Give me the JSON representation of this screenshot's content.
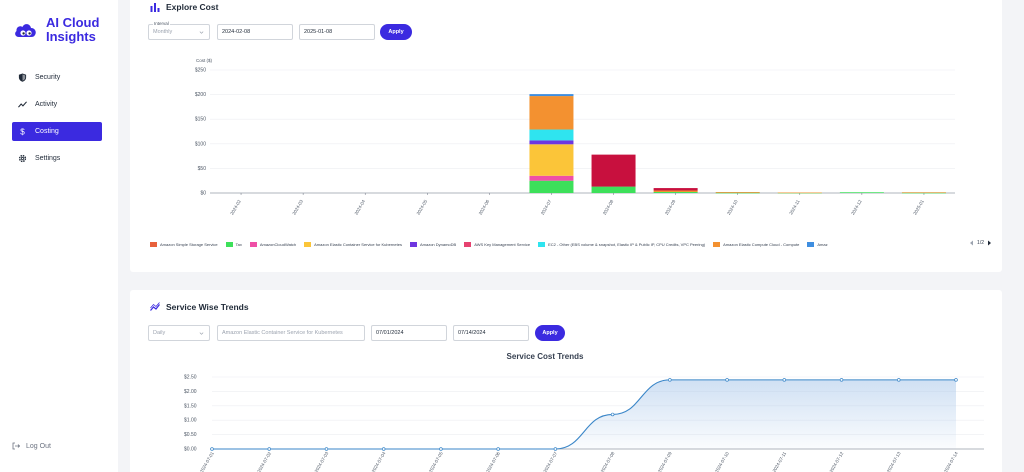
{
  "app": {
    "name_line1": "AI Cloud",
    "name_line2": "Insights",
    "logo_icon": "cloud-eyes-icon"
  },
  "sidebar": {
    "items": [
      {
        "label": "Security",
        "icon": "shield-icon",
        "active": false
      },
      {
        "label": "Activity",
        "icon": "activity-icon",
        "active": false
      },
      {
        "label": "Costing",
        "icon": "dollar-icon",
        "active": true
      },
      {
        "label": "Settings",
        "icon": "gear-icon",
        "active": false
      }
    ],
    "logout_label": "Log Out"
  },
  "explore": {
    "title": "Explore Cost",
    "interval_label": "Interval",
    "interval_value": "Monthly",
    "start_date": "2024-02-08",
    "end_date": "2025-01-08",
    "apply_label": "Apply",
    "legend_page": "1/2"
  },
  "trends": {
    "title": "Service Wise Trends",
    "granularity_value": "Daily",
    "service_value": "Amazon Elastic Container Service for Kubernetes",
    "start_date": "07/01/2024",
    "end_date": "07/14/2024",
    "apply_label": "Apply"
  },
  "colors": {
    "accent": "#3b2ae0"
  },
  "chart_data": [
    {
      "type": "bar",
      "stacked": true,
      "title": "",
      "ylabel": "Cost ($)",
      "ylim": [
        0,
        250
      ],
      "yticks": [
        "$0",
        "$50",
        "$100",
        "$150",
        "$200",
        "$250"
      ],
      "yticks_values": [
        0,
        50,
        100,
        150,
        200,
        250
      ],
      "categories": [
        "2024-02",
        "2024-03",
        "2024-04",
        "2024-05",
        "2024-06",
        "2024-07",
        "2024-08",
        "2024-09",
        "2024-10",
        "2024-11",
        "2024-12",
        "2025-01"
      ],
      "grid": true,
      "legend_placement": "bottom",
      "series": [
        {
          "name": "Amazon Simple Storage Service",
          "color": "#e8613c",
          "values": [
            0,
            0,
            0,
            0,
            0,
            0,
            0,
            0,
            0,
            0,
            0,
            0
          ]
        },
        {
          "name": "Tax",
          "color": "#3de05a",
          "values": [
            0,
            0,
            0,
            0,
            0,
            25,
            13,
            2,
            0.5,
            0.5,
            1.5,
            0.5
          ]
        },
        {
          "name": "AmazonCloudWatch",
          "color": "#ef4fa6",
          "values": [
            0,
            0,
            0,
            0,
            0,
            10,
            0,
            0,
            0,
            0,
            0,
            0
          ]
        },
        {
          "name": "Amazon Elastic Container Service for Kubernetes",
          "color": "#fbc539",
          "values": [
            0,
            0,
            0,
            0,
            0,
            64,
            0,
            0,
            0,
            0,
            0,
            0
          ]
        },
        {
          "name": "Amazon DynamoDB",
          "color": "#6f36e0",
          "values": [
            0,
            0,
            0,
            0,
            0,
            8,
            0,
            0,
            0,
            0,
            0,
            0
          ]
        },
        {
          "name": "AWS Key Management Service",
          "color": "#e64270",
          "values": [
            0,
            0,
            0,
            0,
            0,
            0,
            0,
            0,
            0,
            0,
            0,
            0
          ]
        },
        {
          "name": "EC2 - Other (EBS volume & snapshot, Elastic IP & Public IP, CPU Credits, VPC Peering)",
          "color": "#2fe4ef",
          "values": [
            0,
            0,
            0,
            0,
            0,
            22,
            0,
            0,
            0,
            0,
            0,
            0
          ]
        },
        {
          "name": "Amazon Elastic Compute Cloud - Compute",
          "color": "#f39130",
          "values": [
            0,
            0,
            0,
            0,
            0,
            68,
            0,
            3,
            1.5,
            0.5,
            0,
            1
          ]
        },
        {
          "name": "Amaz",
          "color": "#3f8ee0",
          "values": [
            0,
            0,
            0,
            0,
            0,
            4,
            0,
            0,
            0,
            0,
            0,
            0
          ]
        },
        {
          "name": "",
          "color": "#c8103e",
          "values": [
            0,
            0,
            0,
            0,
            0,
            0,
            65,
            5,
            0,
            0,
            0,
            0
          ]
        }
      ]
    },
    {
      "type": "line",
      "title": "Service Cost Trends",
      "ylim": [
        0,
        2.5
      ],
      "yticks": [
        "$0.00",
        "$0.50",
        "$1.00",
        "$1.50",
        "$2.00",
        "$2.50"
      ],
      "yticks_values": [
        0,
        0.5,
        1.0,
        1.5,
        2.0,
        2.5
      ],
      "x": [
        "2024-07-01",
        "2024-07-02",
        "2024-07-03",
        "2024-07-04",
        "2024-07-05",
        "2024-07-06",
        "2024-07-07",
        "2024-07-08",
        "2024-07-09",
        "2024-07-10",
        "2024-07-11",
        "2024-07-12",
        "2024-07-13",
        "2024-07-14"
      ],
      "series": [
        {
          "color": "#3a86c8",
          "values": [
            0,
            0,
            0,
            0,
            0,
            0,
            0,
            1.2,
            2.4,
            2.4,
            2.4,
            2.4,
            2.4,
            2.4
          ]
        }
      ],
      "grid": true
    }
  ]
}
